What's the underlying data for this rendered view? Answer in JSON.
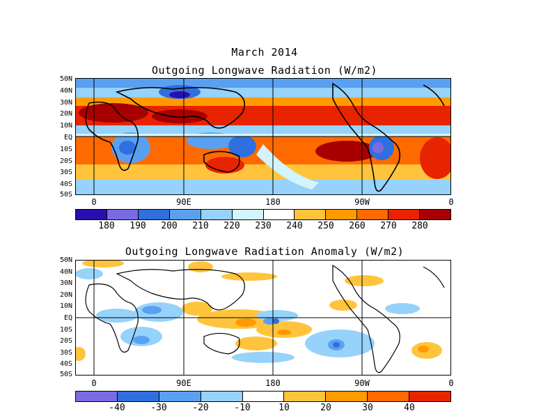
{
  "header": {
    "month_title": "March 2014"
  },
  "map_top": {
    "title": "Outgoing Longwave Radiation (W/m2)",
    "colorbar": {
      "colors": [
        "#2a0fae",
        "#7a6be0",
        "#2f6fe0",
        "#5aa0f0",
        "#96d2fa",
        "#d2f4fc",
        "#ffffff",
        "#ffc43c",
        "#ff9a00",
        "#ff6a00",
        "#e82400",
        "#a80000"
      ],
      "labels": [
        "180",
        "190",
        "200",
        "210",
        "220",
        "230",
        "240",
        "250",
        "260",
        "270",
        "280"
      ]
    }
  },
  "map_bottom": {
    "title": "Outgoing Longwave Radiation Anomaly (W/m2)",
    "colorbar": {
      "colors": [
        "#7a6be0",
        "#2f6fe0",
        "#5aa0f0",
        "#96d2fa",
        "#ffffff",
        "#ffc43c",
        "#ff9a00",
        "#ff6a00",
        "#e82400"
      ],
      "labels": [
        "-40",
        "-30",
        "-20",
        "-10",
        "10",
        "20",
        "30",
        "40"
      ]
    }
  },
  "axes": {
    "lat_labels": [
      "50N",
      "40N",
      "30N",
      "20N",
      "10N",
      "EQ",
      "10S",
      "20S",
      "30S",
      "40S",
      "50S"
    ],
    "lon_labels": [
      "0",
      "90E",
      "180",
      "90W",
      "0"
    ]
  }
}
